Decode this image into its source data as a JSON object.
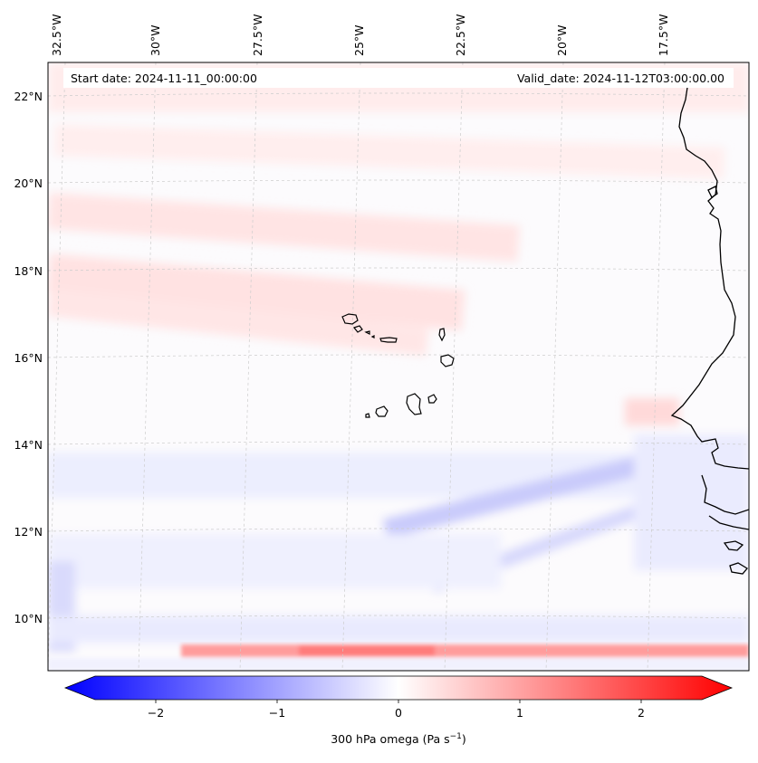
{
  "header": {
    "start_date": "Start date: 2024-11-11_00:00:00",
    "valid_date": "Valid_date: 2024-11-12T03:00:00.00"
  },
  "map": {
    "lon_labels": [
      "32.5°W",
      "30°W",
      "27.5°W",
      "25°W",
      "22.5°W",
      "20°W",
      "17.5°W"
    ],
    "lat_labels": [
      "22°N",
      "20°N",
      "18°N",
      "16°N",
      "14°N",
      "12°N",
      "10°N"
    ]
  },
  "colorbar": {
    "ticks": [
      "−2",
      "−1",
      "0",
      "1",
      "2"
    ],
    "tick_values": [
      -2,
      -1,
      0,
      1,
      2
    ],
    "range": [
      -2.5,
      2.5
    ],
    "label_prefix": "300 hPa omega (Pa s",
    "label_exp": "−1",
    "label_suffix": ")",
    "colors": {
      "negative": "#0000ff",
      "zero": "#ffffff",
      "positive": "#ff0000"
    }
  }
}
